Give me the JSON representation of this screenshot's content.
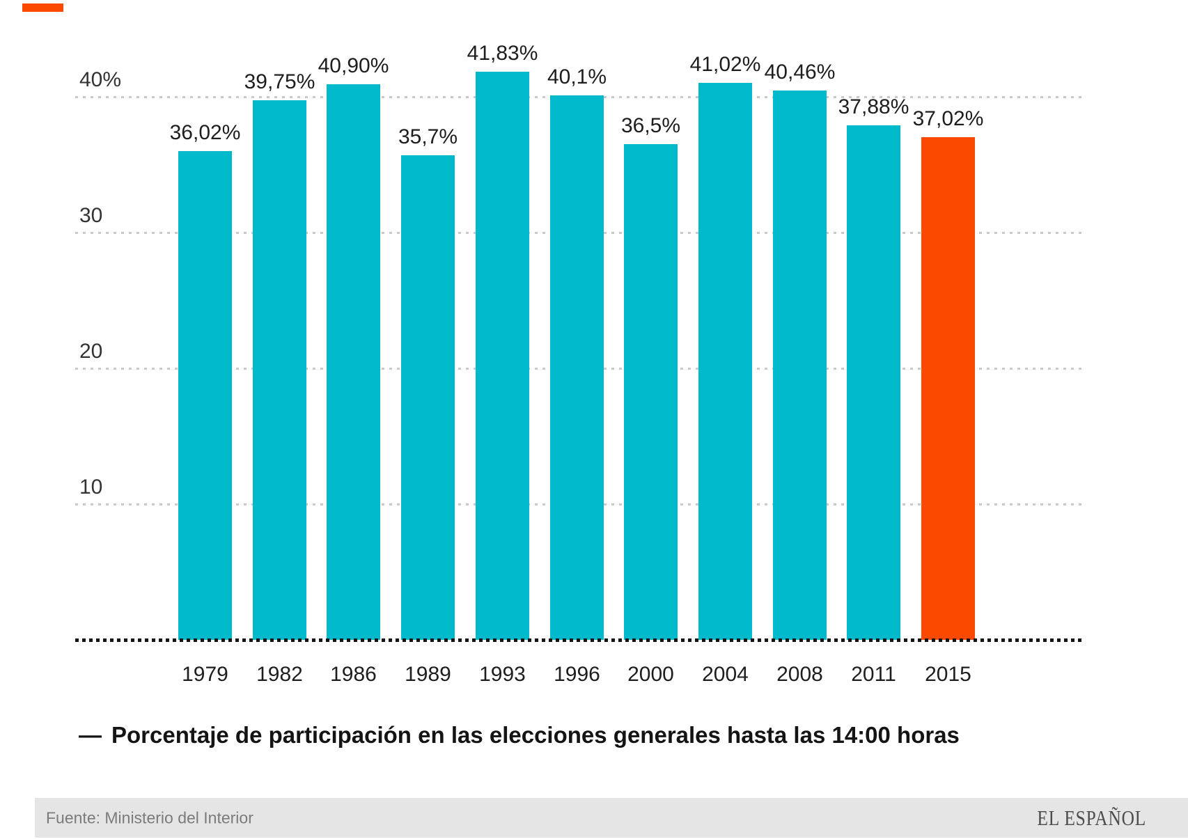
{
  "brand_mark": {
    "color": "#fb4a00"
  },
  "chart_data": {
    "type": "bar",
    "title": "",
    "categories": [
      "1979",
      "1982",
      "1986",
      "1989",
      "1993",
      "1996",
      "2000",
      "2004",
      "2008",
      "2011",
      "2015"
    ],
    "values": [
      36.02,
      39.75,
      40.9,
      35.7,
      41.83,
      40.1,
      36.5,
      41.02,
      40.46,
      37.88,
      37.02
    ],
    "value_labels": [
      "36,02%",
      "39,75%",
      "40,90%",
      "35,7%",
      "41,83%",
      "40,1%",
      "36,5%",
      "41,02%",
      "40,46%",
      "37,88%",
      "37,02%"
    ],
    "highlight_category": "2015",
    "highlight_index": 10,
    "bar_color": "#00b9cb",
    "highlight_color": "#fb4a00",
    "ylim": [
      0,
      45
    ],
    "yticks": [
      {
        "value": 40,
        "label": "40%"
      },
      {
        "value": 30,
        "label": "30"
      },
      {
        "value": 20,
        "label": "20"
      },
      {
        "value": 10,
        "label": "10"
      }
    ],
    "grid": "horizontal-dashed",
    "legend_position": "bottom",
    "xlabel": "",
    "ylabel": ""
  },
  "legend": {
    "marker": "—",
    "label": "Porcentaje de participación en las elecciones generales hasta las 14:00 horas"
  },
  "footer": {
    "source": "Fuente: Ministerio del Interior",
    "brand": "EL ESPAÑOL"
  }
}
